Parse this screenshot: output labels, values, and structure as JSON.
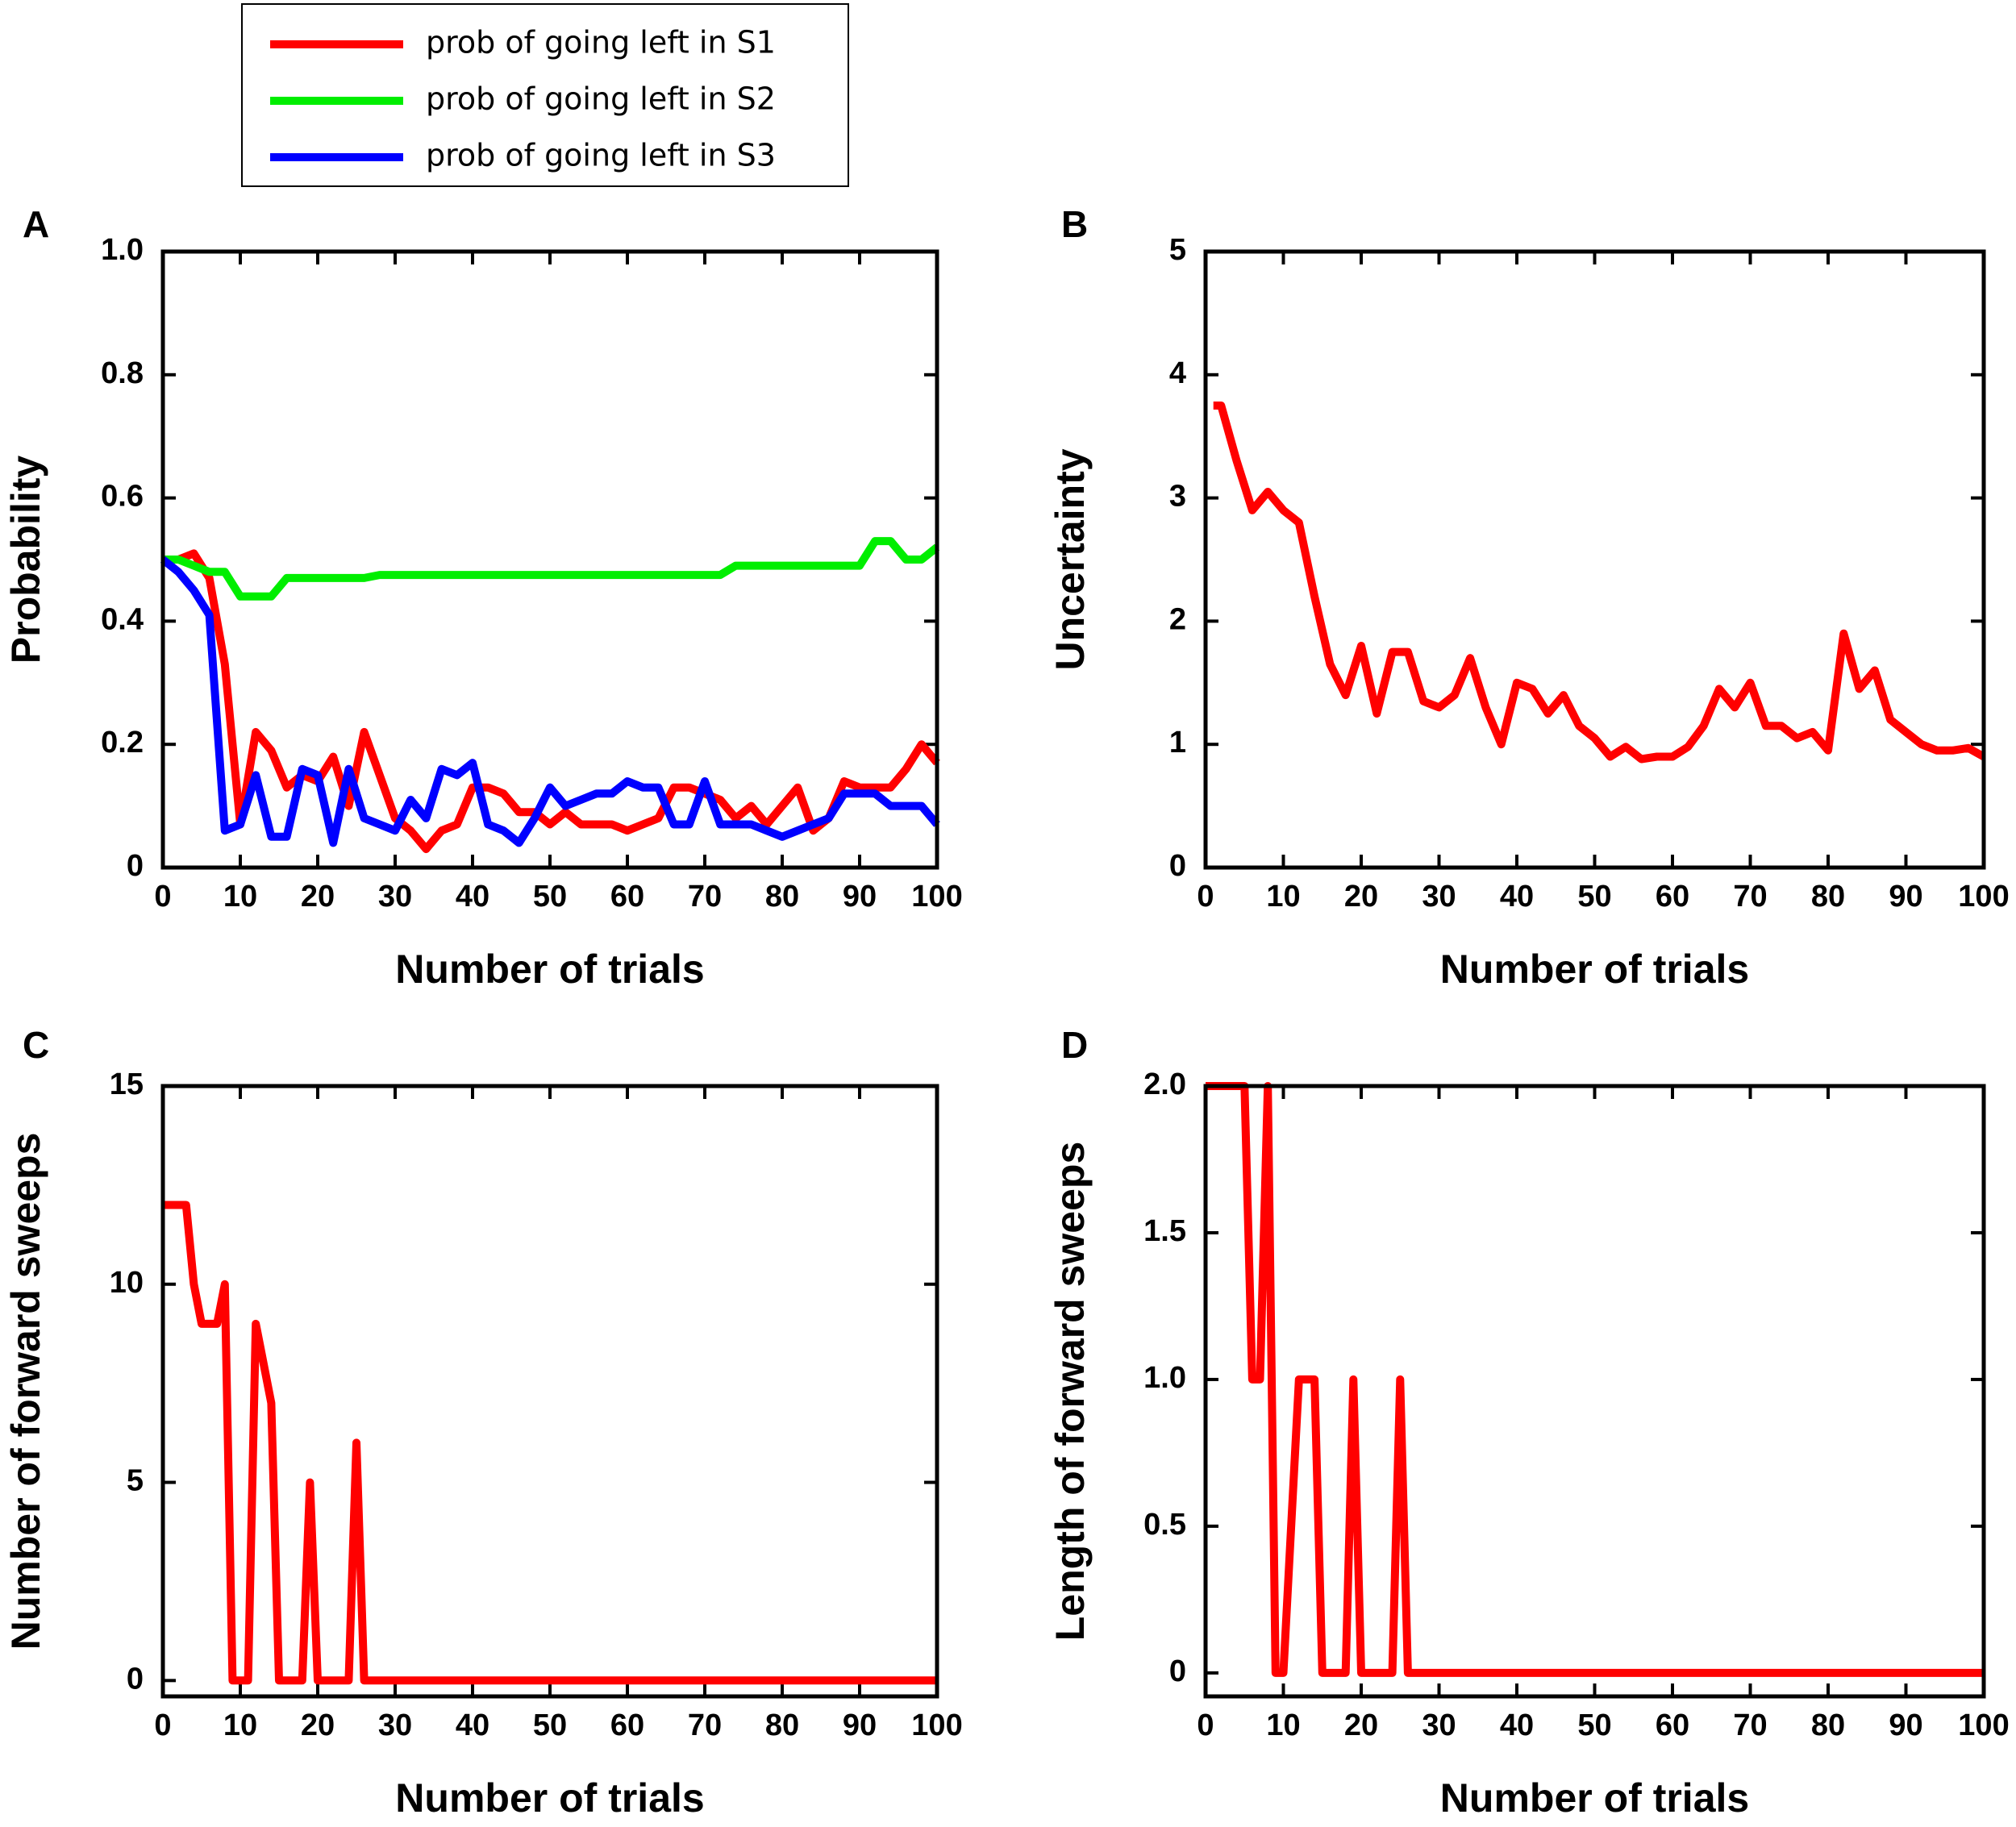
{
  "chart_data": [
    {
      "type": "line",
      "panel": "A",
      "xlabel": "Number of trials",
      "ylabel": "Probability",
      "legend": "top",
      "x": [
        0,
        2,
        4,
        6,
        8,
        10,
        12,
        14,
        16,
        18,
        20,
        22,
        24,
        26,
        28,
        30,
        32,
        34,
        36,
        38,
        40,
        42,
        44,
        46,
        48,
        50,
        52,
        54,
        56,
        58,
        60,
        62,
        64,
        66,
        68,
        70,
        72,
        74,
        76,
        78,
        80,
        82,
        84,
        86,
        88,
        90,
        92,
        94,
        96,
        98,
        100
      ],
      "series": [
        {
          "name": "prob of going left in S1",
          "color": "#ff0000",
          "values": [
            0.5,
            0.5,
            0.51,
            0.47,
            0.33,
            0.07,
            0.22,
            0.19,
            0.13,
            0.15,
            0.14,
            0.18,
            0.1,
            0.22,
            0.15,
            0.08,
            0.06,
            0.03,
            0.06,
            0.07,
            0.13,
            0.13,
            0.12,
            0.09,
            0.09,
            0.07,
            0.09,
            0.07,
            0.07,
            0.07,
            0.06,
            0.07,
            0.08,
            0.13,
            0.13,
            0.12,
            0.11,
            0.08,
            0.1,
            0.07,
            0.1,
            0.13,
            0.06,
            0.08,
            0.14,
            0.13,
            0.13,
            0.13,
            0.16,
            0.2,
            0.17
          ]
        },
        {
          "name": "prob of going left in S2",
          "color": "#00ee00",
          "values": [
            0.5,
            0.5,
            0.49,
            0.48,
            0.48,
            0.44,
            0.44,
            0.44,
            0.47,
            0.47,
            0.47,
            0.47,
            0.47,
            0.47,
            0.475,
            0.475,
            0.475,
            0.475,
            0.475,
            0.475,
            0.475,
            0.475,
            0.475,
            0.475,
            0.475,
            0.475,
            0.475,
            0.475,
            0.475,
            0.475,
            0.475,
            0.475,
            0.475,
            0.475,
            0.475,
            0.475,
            0.475,
            0.49,
            0.49,
            0.49,
            0.49,
            0.49,
            0.49,
            0.49,
            0.49,
            0.49,
            0.53,
            0.53,
            0.5,
            0.5,
            0.52
          ]
        },
        {
          "name": "prob of going left in S3",
          "color": "#0000ff",
          "values": [
            0.5,
            0.48,
            0.45,
            0.41,
            0.06,
            0.07,
            0.15,
            0.05,
            0.05,
            0.16,
            0.15,
            0.04,
            0.16,
            0.08,
            0.07,
            0.06,
            0.11,
            0.08,
            0.16,
            0.15,
            0.17,
            0.07,
            0.06,
            0.04,
            0.08,
            0.13,
            0.1,
            0.11,
            0.12,
            0.12,
            0.14,
            0.13,
            0.13,
            0.07,
            0.07,
            0.14,
            0.07,
            0.07,
            0.07,
            0.06,
            0.05,
            0.06,
            0.07,
            0.08,
            0.12,
            0.12,
            0.12,
            0.1,
            0.1,
            0.1,
            0.07
          ]
        }
      ],
      "xlim": [
        0,
        100
      ],
      "xticks": [
        0,
        10,
        20,
        30,
        40,
        50,
        60,
        70,
        80,
        90,
        100
      ],
      "ylim": [
        0,
        1
      ],
      "yticks": [
        0,
        0.2,
        0.4,
        0.6,
        0.8,
        {
          "value": 1,
          "label": "1.0"
        }
      ]
    },
    {
      "type": "line",
      "panel": "B",
      "xlabel": "Number of trials",
      "ylabel": "Uncertainty",
      "x": [
        1,
        2,
        4,
        6,
        8,
        10,
        12,
        14,
        16,
        18,
        20,
        22,
        24,
        26,
        28,
        30,
        32,
        34,
        36,
        38,
        40,
        42,
        44,
        46,
        48,
        50,
        52,
        54,
        56,
        58,
        60,
        62,
        64,
        66,
        68,
        70,
        72,
        74,
        76,
        78,
        80,
        82,
        84,
        86,
        88,
        90,
        92,
        94,
        96,
        98,
        100
      ],
      "series": [
        {
          "color": "#ff0000",
          "values": [
            3.75,
            3.75,
            3.3,
            2.9,
            3.05,
            2.9,
            2.8,
            2.2,
            1.65,
            1.4,
            1.8,
            1.25,
            1.75,
            1.75,
            1.35,
            1.3,
            1.4,
            1.7,
            1.3,
            1.0,
            1.5,
            1.45,
            1.25,
            1.4,
            1.15,
            1.05,
            0.9,
            0.98,
            0.88,
            0.9,
            0.9,
            0.98,
            1.15,
            1.45,
            1.3,
            1.5,
            1.15,
            1.15,
            1.05,
            1.1,
            0.95,
            1.9,
            1.45,
            1.6,
            1.2,
            1.1,
            1.0,
            0.95,
            0.95,
            0.97,
            0.9
          ]
        }
      ],
      "xlim": [
        0,
        100
      ],
      "xticks": [
        0,
        10,
        20,
        30,
        40,
        50,
        60,
        70,
        80,
        90,
        100
      ],
      "ylim": [
        0,
        5
      ],
      "yticks": [
        0,
        1,
        2,
        3,
        4,
        5
      ]
    },
    {
      "type": "line",
      "panel": "C",
      "xlabel": "Number of trials",
      "ylabel": "Number of forward sweeps",
      "x": [
        0,
        3,
        4,
        5,
        7,
        8,
        9,
        11,
        12,
        14,
        15,
        18,
        19,
        20,
        24,
        25,
        26,
        100
      ],
      "series": [
        {
          "color": "#ff0000",
          "values": [
            12,
            12,
            10,
            9,
            9,
            10,
            0,
            0,
            9,
            7,
            0,
            0,
            5,
            0,
            0,
            6,
            0,
            0
          ]
        }
      ],
      "xlim": [
        0,
        100
      ],
      "xticks": [
        0,
        10,
        20,
        30,
        40,
        50,
        60,
        70,
        80,
        90,
        100
      ],
      "ylim": [
        -0.4,
        15
      ],
      "yticks": [
        0,
        5,
        10,
        15
      ]
    },
    {
      "type": "line",
      "panel": "D",
      "xlabel": "Number of trials",
      "ylabel": "Length of forward sweeps",
      "x": [
        0,
        5,
        6,
        7,
        8,
        9,
        10,
        12,
        14,
        15,
        18,
        19,
        20,
        24,
        25,
        26,
        100
      ],
      "series": [
        {
          "color": "#ff0000",
          "values": [
            2,
            2,
            1,
            1,
            2,
            0,
            0,
            1,
            1,
            0,
            0,
            1,
            0,
            0,
            1,
            0,
            0
          ]
        }
      ],
      "xlim": [
        0,
        100
      ],
      "xticks": [
        0,
        10,
        20,
        30,
        40,
        50,
        60,
        70,
        80,
        90,
        100
      ],
      "ylim": [
        -0.08,
        2
      ],
      "yticks": [
        0,
        0.5,
        {
          "value": 1,
          "label": "1.0"
        },
        1.5,
        {
          "value": 2,
          "label": "2.0"
        }
      ]
    }
  ]
}
